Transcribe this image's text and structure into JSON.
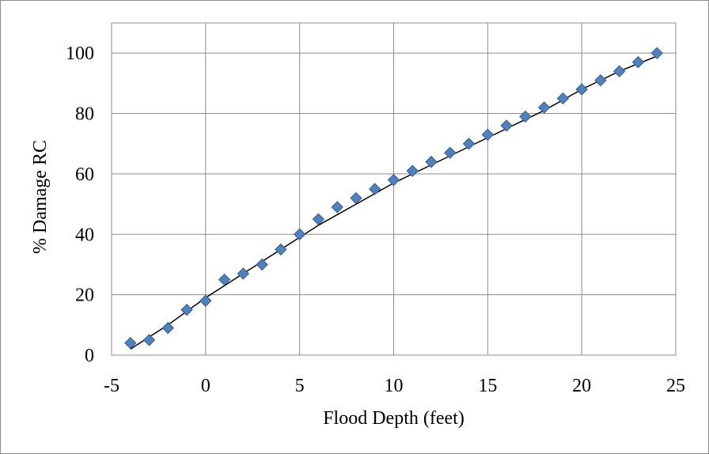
{
  "chart_data": {
    "type": "scatter",
    "title": "",
    "xlabel": "Flood Depth (feet)",
    "ylabel": "% Damage RC",
    "xlim": [
      -5,
      25
    ],
    "ylim": [
      0,
      110
    ],
    "xticks": [
      -5,
      0,
      5,
      10,
      15,
      20,
      25
    ],
    "yticks": [
      0,
      20,
      40,
      60,
      80,
      100
    ],
    "grid": true,
    "legend": "none",
    "colors": {
      "marker": "#4f81bd",
      "marker_edge": "#2e5f9e",
      "trendline": "#000000",
      "grid": "#8c8c8c"
    },
    "series": [
      {
        "marker": "diamond",
        "x": [
          -4,
          -3,
          -2,
          -1,
          0,
          1,
          2,
          3,
          4,
          5,
          6,
          7,
          8,
          9,
          10,
          11,
          12,
          13,
          14,
          15,
          16,
          17,
          18,
          19,
          20,
          21,
          22,
          23,
          24
        ],
        "y": [
          4,
          5,
          9,
          15,
          18,
          25,
          27,
          30,
          35,
          40,
          45,
          49,
          52,
          55,
          58,
          61,
          64,
          67,
          70,
          73,
          76,
          79,
          82,
          85,
          88,
          91,
          94,
          97,
          100
        ]
      }
    ],
    "trendline": {
      "type": "polynomial",
      "x": [
        -4,
        -2,
        0,
        2,
        4,
        6,
        8,
        10,
        12,
        14,
        16,
        18,
        20,
        22,
        24
      ],
      "y": [
        2,
        10,
        19,
        27,
        35,
        43,
        50,
        57,
        63,
        69,
        75,
        81,
        88,
        94,
        99
      ]
    }
  }
}
